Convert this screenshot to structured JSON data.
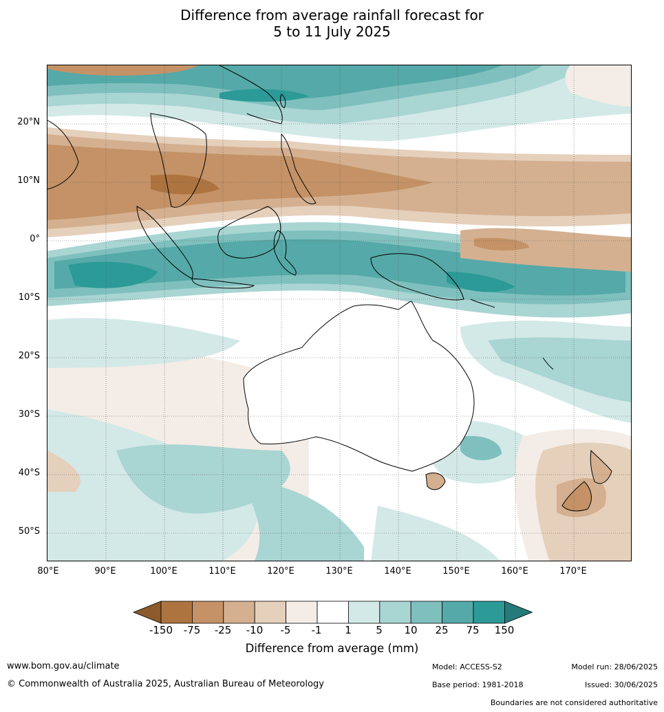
{
  "title": {
    "line1": "Difference from average rainfall forecast for",
    "line2": "5 to 11 July 2025"
  },
  "map": {
    "lat_labels": [
      "20°N",
      "10°N",
      "0°",
      "10°S",
      "20°S",
      "30°S",
      "40°S",
      "50°S"
    ],
    "lon_labels": [
      "80°E",
      "90°E",
      "100°E",
      "110°E",
      "120°E",
      "130°E",
      "140°E",
      "150°E",
      "160°E",
      "170°E"
    ],
    "extent": {
      "lon_min": 80,
      "lon_max": 180,
      "lat_min": -55,
      "lat_max": 30
    }
  },
  "colorbar": {
    "ticks": [
      "-150",
      "-75",
      "-25",
      "-10",
      "-5",
      "-1",
      "1",
      "5",
      "10",
      "25",
      "75",
      "150"
    ],
    "colors": [
      "#8c5a2b",
      "#ad7440",
      "#c49266",
      "#d4b090",
      "#e5d0bc",
      "#f4ece6",
      "#ffffff",
      "#d3e9e7",
      "#a9d5d3",
      "#7fc0be",
      "#55a9a8",
      "#2c9a97",
      "#267a79"
    ],
    "label": "Difference from average (mm)"
  },
  "footer": {
    "website": "www.bom.gov.au/climate",
    "copyright": "© Commonwealth of Australia 2025, Australian Bureau of Meteorology",
    "model": "Model: ACCESS-S2",
    "base_period": "Base period: 1981-2018",
    "model_run": "Model run: 28/06/2025",
    "issued": "Issued: 30/06/2025",
    "disclaimer": "Boundaries are not considered authoritative"
  }
}
